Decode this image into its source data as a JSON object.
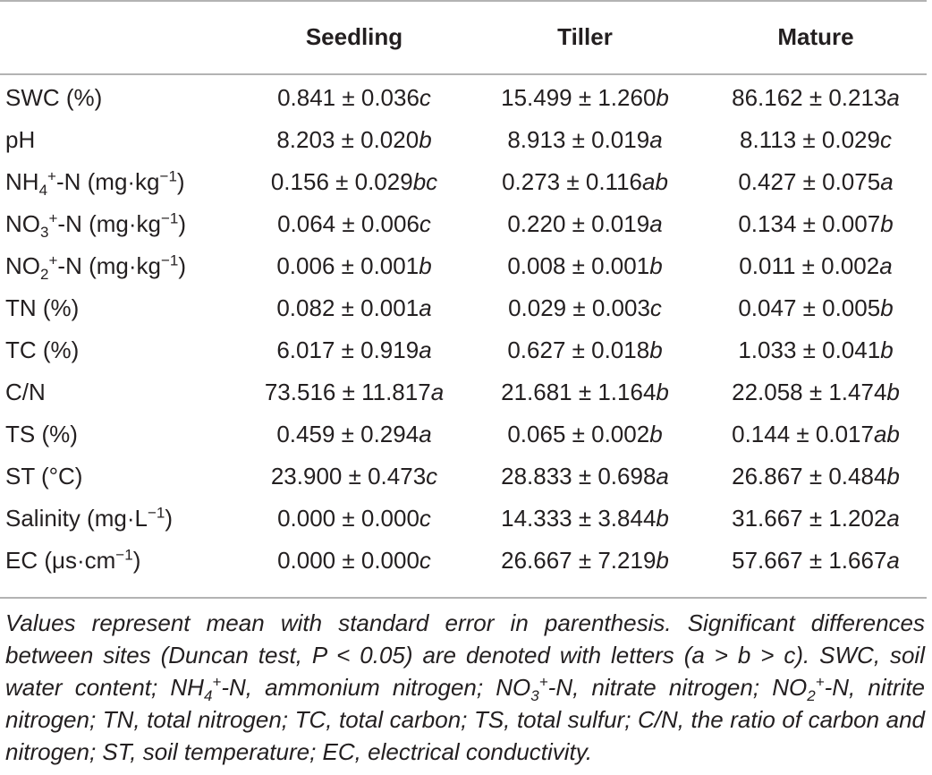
{
  "table": {
    "columns": [
      "",
      "Seedling",
      "Tiller",
      "Mature"
    ],
    "rows": [
      {
        "label": "SWC (%)",
        "values": [
          [
            "0.841 ± 0.036",
            "c"
          ],
          [
            "15.499 ± 1.260",
            "b"
          ],
          [
            "86.162 ± 0.213",
            "a"
          ]
        ]
      },
      {
        "label": "pH",
        "values": [
          [
            "8.203 ± 0.020",
            "b"
          ],
          [
            "8.913 ± 0.019",
            "a"
          ],
          [
            "8.113 ± 0.029",
            "c"
          ]
        ]
      },
      {
        "label": "NH4+-N (mg·kg−1)",
        "values": [
          [
            "0.156 ± 0.029",
            "bc"
          ],
          [
            "0.273 ± 0.116",
            "ab"
          ],
          [
            "0.427 ± 0.075",
            "a"
          ]
        ]
      },
      {
        "label": "NO3+-N (mg·kg−1)",
        "values": [
          [
            "0.064 ± 0.006",
            "c"
          ],
          [
            "0.220 ± 0.019",
            "a"
          ],
          [
            "0.134 ± 0.007",
            "b"
          ]
        ]
      },
      {
        "label": "NO2+-N (mg·kg−1)",
        "values": [
          [
            "0.006 ± 0.001",
            "b"
          ],
          [
            "0.008 ± 0.001",
            "b"
          ],
          [
            "0.011 ± 0.002",
            "a"
          ]
        ]
      },
      {
        "label": "TN (%)",
        "values": [
          [
            "0.082 ± 0.001",
            "a"
          ],
          [
            "0.029 ± 0.003",
            "c"
          ],
          [
            "0.047 ± 0.005",
            "b"
          ]
        ]
      },
      {
        "label": "TC (%)",
        "values": [
          [
            "6.017 ± 0.919",
            "a"
          ],
          [
            "0.627 ± 0.018",
            "b"
          ],
          [
            "1.033 ± 0.041",
            "b"
          ]
        ]
      },
      {
        "label": "C/N",
        "values": [
          [
            "73.516 ± 11.817",
            "a"
          ],
          [
            "21.681 ± 1.164",
            "b"
          ],
          [
            "22.058 ± 1.474",
            "b"
          ]
        ]
      },
      {
        "label": "TS (%)",
        "values": [
          [
            "0.459 ± 0.294",
            "a"
          ],
          [
            "0.065 ± 0.002",
            "b"
          ],
          [
            "0.144 ± 0.017",
            "ab"
          ]
        ]
      },
      {
        "label": "ST (°C)",
        "values": [
          [
            "23.900 ± 0.473",
            "c"
          ],
          [
            "28.833 ± 0.698",
            "a"
          ],
          [
            "26.867 ± 0.484",
            "b"
          ]
        ]
      },
      {
        "label": "Salinity (mg·L−1)",
        "values": [
          [
            "0.000 ± 0.000",
            "c"
          ],
          [
            "14.333 ± 3.844",
            "b"
          ],
          [
            "31.667 ± 1.202",
            "a"
          ]
        ]
      },
      {
        "label": "EC (μs·cm−1)",
        "values": [
          [
            "0.000 ± 0.000",
            "c"
          ],
          [
            "26.667 ± 7.219",
            "b"
          ],
          [
            "57.667 ± 1.667",
            "a"
          ]
        ]
      }
    ]
  },
  "label_parts": {
    "nh4": {
      "pre": "NH",
      "sub": "4",
      "sup": "+",
      "post": "-N (mg·kg",
      "sup2": "−1",
      "end": ")"
    },
    "no3": {
      "pre": "NO",
      "sub": "3",
      "sup": "+",
      "post": "-N (mg·kg",
      "sup2": "−1",
      "end": ")"
    },
    "no2": {
      "pre": "NO",
      "sub": "2",
      "sup": "+",
      "post": "-N (mg·kg",
      "sup2": "−1",
      "end": ")"
    },
    "sal": {
      "pre": "Salinity (mg·L",
      "sup": "−1",
      "end": ")"
    },
    "ec": {
      "pre": "EC (μs·cm",
      "sup": "−1",
      "end": ")"
    }
  },
  "footnote": {
    "p1": "Values represent mean with standard error in parenthesis. Significant differences between sites (Duncan test, P < 0.05) are denoted with letters (a > b > c). SWC, soil water content; NH",
    "s1": "4",
    "u1": "+",
    "p2": "-N, ammonium nitrogen; NO",
    "s2": "3",
    "u2": "+",
    "p3": "-N, nitrate nitrogen; NO",
    "s3": "2",
    "u3": "+",
    "p4": "-N, nitrite nitrogen; TN, total nitrogen; TC, total carbon; TS, total sulfur; C/N, the ratio of carbon and nitrogen; ST, soil temperature; EC, electrical conductivity."
  }
}
